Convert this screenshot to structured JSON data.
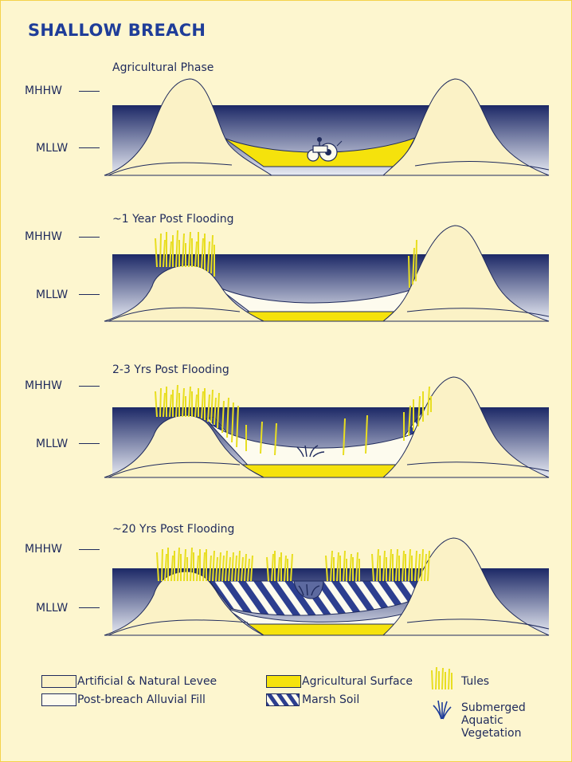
{
  "title": "SHALLOW BREACH",
  "levels": {
    "high": "MHHW",
    "low": "MLLW"
  },
  "phases": [
    {
      "label": "Agricultural Phase"
    },
    {
      "label": "~1 Year Post Flooding"
    },
    {
      "label": "2-3 Yrs Post Flooding"
    },
    {
      "label": "~20 Yrs Post Flooding"
    }
  ],
  "legend": {
    "levee": "Artificial  & Natural Levee",
    "fill": "Post-breach Alluvial Fill",
    "agricultural": "Agricultural Surface",
    "marsh": "Marsh Soil",
    "tules": "Tules",
    "sav": "Submerged Aquatic Vegetation"
  },
  "colors": {
    "background": "#fdf6cf",
    "border": "#f4d24a",
    "water_dark": "#1c2866",
    "water_light": "#e8ebf3",
    "levee": "#fbf2c6",
    "fill": "#fdfbee",
    "agricultural": "#f5e20c",
    "tules": "#e8de20",
    "outline": "#1f2a5c",
    "title": "#1f3d99"
  }
}
